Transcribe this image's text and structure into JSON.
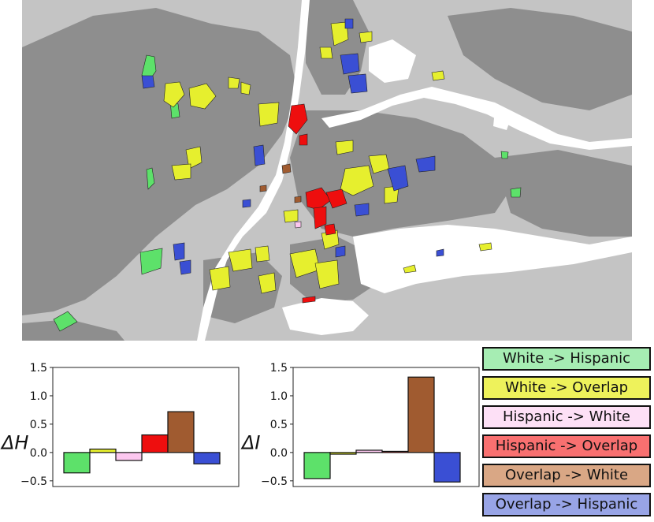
{
  "colors": {
    "land_light": "#c4c4c4",
    "land_dark": "#8e8e8e",
    "water": "#ffffff",
    "white_to_hispanic": "#5de16a",
    "white_to_overlap": "#e6ef2e",
    "hispanic_to_white": "#fcc7ef",
    "hispanic_to_overlap": "#ee0e0e",
    "overlap_to_white": "#a05b30",
    "overlap_to_hispanic": "#3a4fd4"
  },
  "legend": [
    {
      "label": "White -> Hispanic",
      "color": "#a6edb3"
    },
    {
      "label": "White -> Overlap",
      "color": "#eef25b"
    },
    {
      "label": "Hispanic -> White",
      "color": "#fde0f6"
    },
    {
      "label": "Hispanic -> Overlap",
      "color": "#f87070"
    },
    {
      "label": "Overlap -> White",
      "color": "#d9a785"
    },
    {
      "label": "Overlap -> Hispanic",
      "color": "#98a4e6"
    }
  ],
  "chart_data": [
    {
      "type": "bar",
      "ylabel": "ΔH",
      "categories": [
        "White -> Hispanic",
        "White -> Overlap",
        "Hispanic -> White",
        "Hispanic -> Overlap",
        "Overlap -> White",
        "Overlap -> Hispanic"
      ],
      "values": [
        -0.36,
        0.06,
        -0.14,
        0.31,
        0.72,
        -0.2
      ],
      "ylim": [
        -0.6,
        1.5
      ],
      "yticks": [
        -0.5,
        0.0,
        0.5,
        1.0,
        1.5
      ],
      "ytick_labels": [
        "−0.5",
        "0.0",
        "0.5",
        "1.0",
        "1.5"
      ],
      "colors": [
        "#5de16a",
        "#e6ef2e",
        "#fcc7ef",
        "#ee0e0e",
        "#a05b30",
        "#3a4fd4"
      ]
    },
    {
      "type": "bar",
      "ylabel": "ΔI",
      "categories": [
        "White -> Hispanic",
        "White -> Overlap",
        "Hispanic -> White",
        "Hispanic -> Overlap",
        "Overlap -> White",
        "Overlap -> Hispanic"
      ],
      "values": [
        -0.46,
        -0.03,
        0.04,
        0.02,
        1.33,
        -0.52
      ],
      "ylim": [
        -0.6,
        1.5
      ],
      "yticks": [
        -0.5,
        0.0,
        0.5,
        1.0,
        1.5
      ],
      "ytick_labels": [
        "−0.5",
        "0.0",
        "0.5",
        "1.0",
        "1.5"
      ],
      "colors": [
        "#5de16a",
        "#e6ef2e",
        "#fcc7ef",
        "#ee0e0e",
        "#a05b30",
        "#3a4fd4"
      ]
    }
  ]
}
